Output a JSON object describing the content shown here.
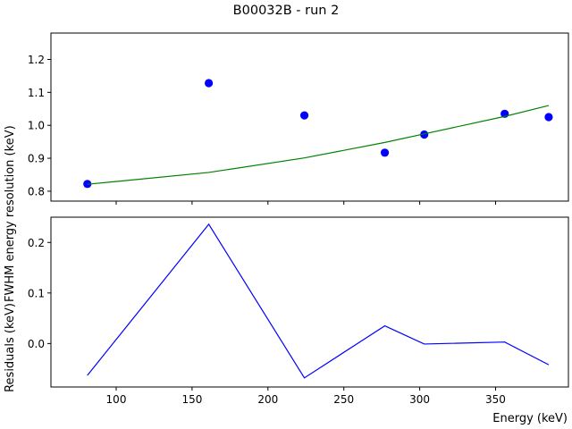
{
  "figure": {
    "title": "B00032B - run 2"
  },
  "chart_data": [
    {
      "type": "scatter",
      "ylabel": "FWHM energy resolution (keV)",
      "ylim": [
        0.77,
        1.28
      ],
      "xlim": [
        57,
        398
      ],
      "yticks": [
        0.8,
        0.9,
        1.0,
        1.1,
        1.2
      ],
      "ytick_labels": [
        "0.8",
        "0.9",
        "1.0",
        "1.1",
        "1.2"
      ],
      "grid": false,
      "series": [
        {
          "kind": "points",
          "color": "#0000ff",
          "x": [
            81,
            161,
            224,
            277,
            303,
            356,
            385
          ],
          "y": [
            0.822,
            1.128,
            1.03,
            0.917,
            0.972,
            1.035,
            1.025
          ]
        },
        {
          "kind": "line",
          "color": "#008000",
          "x": [
            81,
            161,
            224,
            277,
            303,
            356,
            385
          ],
          "y": [
            0.821,
            0.857,
            0.901,
            0.948,
            0.974,
            1.027,
            1.06
          ]
        }
      ]
    },
    {
      "type": "line",
      "xlabel": "Energy (keV)",
      "ylabel": "Residuals (keV)",
      "xlim": [
        57,
        398
      ],
      "ylim": [
        -0.086,
        0.25
      ],
      "xticks": [
        100,
        150,
        200,
        250,
        300,
        350
      ],
      "xtick_labels": [
        "100",
        "150",
        "200",
        "250",
        "300",
        "350"
      ],
      "yticks": [
        0.0,
        0.1,
        0.2
      ],
      "ytick_labels": [
        "0.0",
        "0.1",
        "0.2"
      ],
      "grid": false,
      "series": [
        {
          "kind": "line",
          "color": "#0000ff",
          "x": [
            81,
            161,
            224,
            277,
            303,
            356,
            385
          ],
          "y": [
            -0.063,
            0.236,
            -0.068,
            0.035,
            -0.001,
            0.003,
            -0.042
          ]
        }
      ]
    }
  ]
}
